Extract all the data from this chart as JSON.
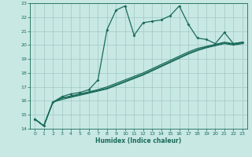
{
  "title": "",
  "xlabel": "Humidex (Indice chaleur)",
  "xlim": [
    -0.5,
    23.5
  ],
  "ylim": [
    14,
    23
  ],
  "xticks": [
    0,
    1,
    2,
    3,
    4,
    5,
    6,
    7,
    8,
    9,
    10,
    11,
    12,
    13,
    14,
    15,
    16,
    17,
    18,
    19,
    20,
    21,
    22,
    23
  ],
  "yticks": [
    14,
    15,
    16,
    17,
    18,
    19,
    20,
    21,
    22,
    23
  ],
  "bg_color": "#c8e8e4",
  "grid_color": "#a0c8c4",
  "line_color": "#1a6b5a",
  "line1_x": [
    0,
    1,
    2,
    3,
    4,
    5,
    6,
    7,
    8,
    9,
    10,
    11,
    12,
    13,
    14,
    15,
    16,
    17,
    18,
    19,
    20,
    21,
    22,
    23
  ],
  "line1_y": [
    14.7,
    14.2,
    15.9,
    16.3,
    16.5,
    16.6,
    16.8,
    17.5,
    21.1,
    22.5,
    22.8,
    20.7,
    21.6,
    21.7,
    21.8,
    22.1,
    22.8,
    21.5,
    20.5,
    20.4,
    20.1,
    20.9,
    20.1,
    20.2
  ],
  "line2_x": [
    0,
    1,
    2,
    3,
    4,
    5,
    6,
    7,
    8,
    9,
    10,
    11,
    12,
    13,
    14,
    15,
    16,
    17,
    18,
    19,
    20,
    21,
    22,
    23
  ],
  "line2_y": [
    14.7,
    14.2,
    15.9,
    16.2,
    16.35,
    16.5,
    16.65,
    16.8,
    17.0,
    17.25,
    17.5,
    17.75,
    18.0,
    18.3,
    18.6,
    18.9,
    19.2,
    19.5,
    19.75,
    19.9,
    20.05,
    20.2,
    20.1,
    20.2
  ],
  "line3_x": [
    0,
    1,
    2,
    3,
    4,
    5,
    6,
    7,
    8,
    9,
    10,
    11,
    12,
    13,
    14,
    15,
    16,
    17,
    18,
    19,
    20,
    21,
    22,
    23
  ],
  "line3_y": [
    14.7,
    14.2,
    15.9,
    16.2,
    16.3,
    16.45,
    16.6,
    16.75,
    16.9,
    17.15,
    17.4,
    17.65,
    17.9,
    18.2,
    18.5,
    18.8,
    19.1,
    19.4,
    19.65,
    19.85,
    20.0,
    20.15,
    20.05,
    20.15
  ],
  "line4_x": [
    0,
    1,
    2,
    3,
    4,
    5,
    6,
    7,
    8,
    9,
    10,
    11,
    12,
    13,
    14,
    15,
    16,
    17,
    18,
    19,
    20,
    21,
    22,
    23
  ],
  "line4_y": [
    14.7,
    14.2,
    15.9,
    16.1,
    16.25,
    16.4,
    16.55,
    16.7,
    16.85,
    17.1,
    17.35,
    17.6,
    17.85,
    18.15,
    18.45,
    18.75,
    19.05,
    19.35,
    19.6,
    19.8,
    19.95,
    20.1,
    20.0,
    20.1
  ]
}
